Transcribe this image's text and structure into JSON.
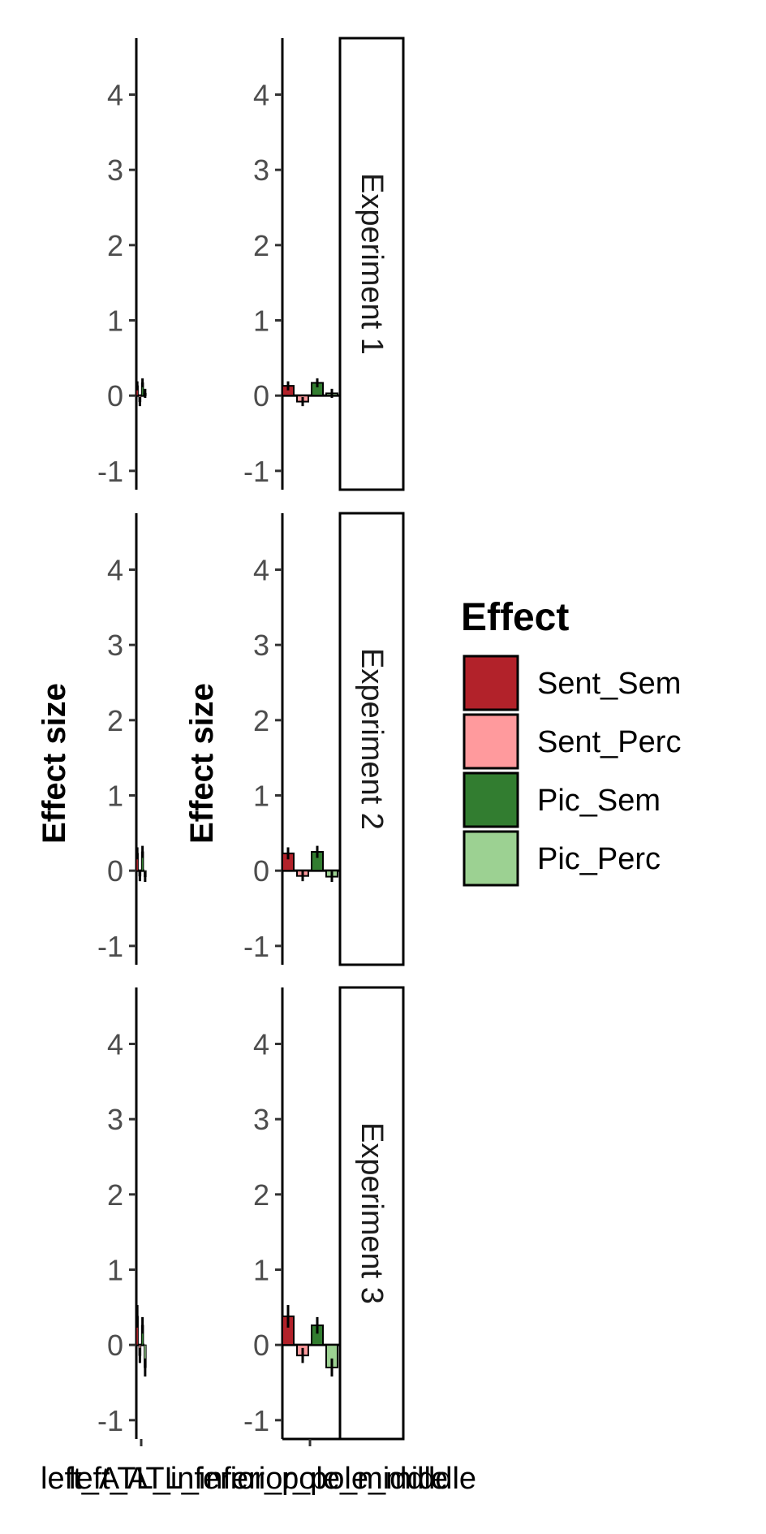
{
  "chart_data": {
    "type": "bar",
    "ylabel": "Effect size",
    "ylim": [
      -1.25,
      4.75
    ],
    "yticks": [
      "-1",
      "0",
      "1",
      "2",
      "3",
      "4"
    ],
    "x_labels": [
      "left_ATL_inferior_pole_middle",
      "left_ATL_inferior_pole_middle"
    ],
    "legend": {
      "title": "Effect",
      "placement": "right",
      "items": [
        {
          "name": "Sent_Sem",
          "color": "#B2222A"
        },
        {
          "name": "Sent_Perc",
          "color": "#FF9A9D"
        },
        {
          "name": "Pic_Sem",
          "color": "#327D30"
        },
        {
          "name": "Pic_Perc",
          "color": "#9CD192"
        }
      ]
    },
    "facets": [
      {
        "label": "Experiment 1",
        "values": [
          0.13,
          -0.08,
          0.17,
          0.03
        ],
        "errors": [
          0.06,
          0.06,
          0.06,
          0.06
        ]
      },
      {
        "label": "Experiment 2",
        "values": [
          0.23,
          -0.07,
          0.25,
          -0.08
        ],
        "errors": [
          0.08,
          0.07,
          0.08,
          0.07
        ]
      },
      {
        "label": "Experiment 3",
        "values": [
          0.38,
          -0.14,
          0.26,
          -0.3
        ],
        "errors": [
          0.15,
          0.1,
          0.11,
          0.12
        ]
      }
    ]
  }
}
